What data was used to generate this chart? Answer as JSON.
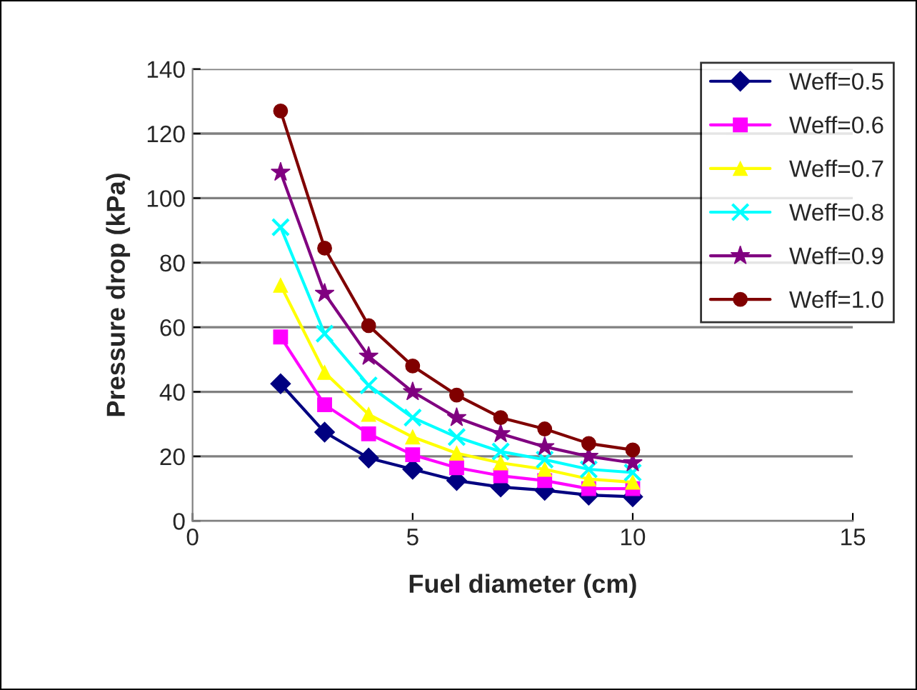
{
  "chart_data": {
    "type": "line",
    "xlabel": "Fuel diameter (cm)",
    "ylabel": "Pressure drop (kPa)",
    "x": [
      2,
      3,
      4,
      5,
      6,
      7,
      8,
      9,
      10
    ],
    "series": [
      {
        "name": "Weff=0.5",
        "color": "#000080",
        "marker": "diamond",
        "values": [
          42.5,
          27.5,
          19.5,
          16,
          12.5,
          10.5,
          9.5,
          8,
          7.5
        ]
      },
      {
        "name": "Weff=0.6",
        "color": "#ff00ff",
        "marker": "square",
        "values": [
          57,
          36,
          27,
          20.5,
          16.5,
          14,
          12.5,
          10,
          10
        ]
      },
      {
        "name": "Weff=0.7",
        "color": "#ffff00",
        "marker": "triangle",
        "values": [
          73,
          46,
          33,
          26,
          21,
          18,
          16,
          13,
          12
        ]
      },
      {
        "name": "Weff=0.8",
        "color": "#00ffff",
        "marker": "cross",
        "values": [
          91,
          58,
          42,
          32,
          26,
          21.5,
          19,
          16,
          15
        ]
      },
      {
        "name": "Weff=0.9",
        "color": "#800080",
        "marker": "star",
        "values": [
          108,
          70.5,
          51,
          40,
          32,
          27,
          23,
          20,
          18
        ]
      },
      {
        "name": "Weff=1.0",
        "color": "#800000",
        "marker": "circle",
        "values": [
          127,
          84.5,
          60.5,
          48,
          39,
          32,
          28.5,
          24,
          22
        ]
      }
    ],
    "xlim": [
      0,
      15
    ],
    "xticks": [
      0,
      5,
      10,
      15
    ],
    "ylim": [
      0,
      140
    ],
    "yticks": [
      0,
      20,
      40,
      60,
      80,
      100,
      120,
      140
    ],
    "grid": "y",
    "legend": "top right",
    "line_style": "solid"
  }
}
